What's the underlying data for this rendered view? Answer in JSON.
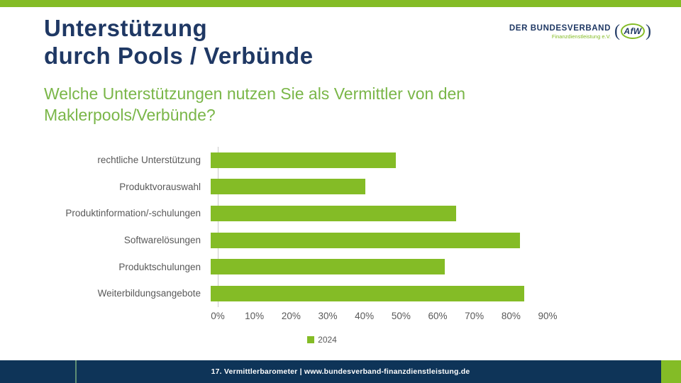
{
  "header": {
    "title_line1": "Unterstützung",
    "title_line2": "durch Pools / Verbünde",
    "subtitle": "Welche Unterstützungen nutzen Sie als Vermittler von den Maklerpools/Verbünde?"
  },
  "logo": {
    "name": "DER BUNDESVERBAND",
    "tagline": "Finanzdienstleistung e.V.",
    "badge": "AfW",
    "paren_open": "(",
    "paren_close": ")"
  },
  "chart_data": {
    "type": "bar",
    "orientation": "horizontal",
    "categories": [
      "rechtliche Unterstützung",
      "Produktvorauswahl",
      "Produktinformation/-schulungen",
      "Softwarelösungen",
      "Produktschulungen",
      "Weiterbildungsangebote"
    ],
    "series": [
      {
        "name": "2024",
        "values": [
          49,
          41,
          65,
          82,
          62,
          83
        ]
      }
    ],
    "x_ticks": [
      "0%",
      "10%",
      "20%",
      "30%",
      "40%",
      "50%",
      "60%",
      "70%",
      "80%",
      "90%"
    ],
    "xlim": [
      0,
      90
    ],
    "xlabel": "",
    "ylabel": "",
    "grid": false,
    "legend_position": "bottom-center",
    "bar_color": "#84BC26"
  },
  "legend": {
    "label_2024": "2024"
  },
  "footer": {
    "text": "17. Vermittlerbarometer | www.bundesverband-finanzdienstleistung.de"
  },
  "colors": {
    "accent_green": "#84BC26",
    "subtitle_green": "#7AB648",
    "title_navy": "#1F3864",
    "footer_navy": "#0E3458",
    "text_gray": "#595959"
  }
}
